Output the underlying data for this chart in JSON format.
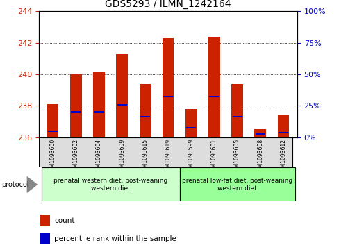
{
  "title": "GDS5293 / ILMN_1242164",
  "samples": [
    "GSM1093600",
    "GSM1093602",
    "GSM1093604",
    "GSM1093609",
    "GSM1093615",
    "GSM1093619",
    "GSM1093599",
    "GSM1093601",
    "GSM1093605",
    "GSM1093608",
    "GSM1093612"
  ],
  "bar_tops": [
    238.1,
    240.0,
    240.15,
    241.3,
    239.4,
    242.3,
    237.8,
    242.4,
    239.4,
    236.5,
    237.4
  ],
  "blue_pos": [
    236.4,
    237.6,
    237.6,
    238.05,
    237.3,
    238.6,
    236.6,
    238.6,
    237.3,
    236.2,
    236.3
  ],
  "bar_color": "#cc2200",
  "blue_color": "#0000cc",
  "base": 236.0,
  "ymin": 236.0,
  "ymax": 244.0,
  "yticks_left": [
    236,
    238,
    240,
    242,
    244
  ],
  "yticks_right": [
    0,
    25,
    50,
    75,
    100
  ],
  "ylabel_left_color": "#cc2200",
  "ylabel_right_color": "#0000cc",
  "group1_indices": [
    0,
    1,
    2,
    3,
    4,
    5
  ],
  "group2_indices": [
    6,
    7,
    8,
    9,
    10
  ],
  "group1_label": "prenatal western diet, post-weaning\nwestern diet",
  "group2_label": "prenatal low-fat diet, post-weaning\nwestern diet",
  "group1_color": "#ccffcc",
  "group2_color": "#99ff99",
  "protocol_label": "protocol",
  "legend_count": "count",
  "legend_percentile": "percentile rank within the sample",
  "bar_width": 0.5,
  "background_color": "#ffffff",
  "plot_bg": "#ffffff"
}
